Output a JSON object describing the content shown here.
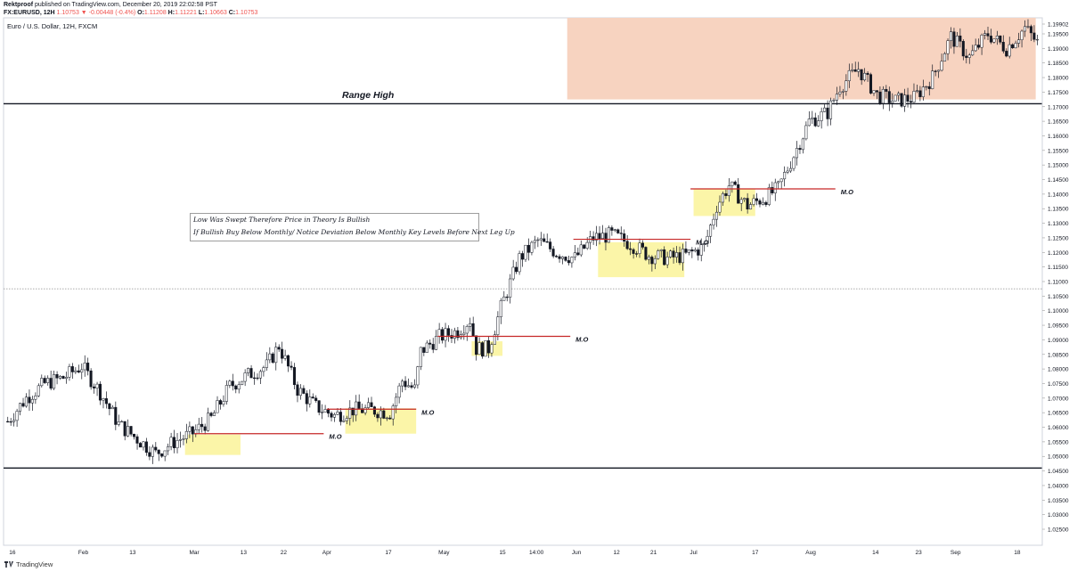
{
  "header": {
    "publisher": "Rektproof",
    "published_text": "published on TradingView.com, December 20, 2019 22:02:58 PST",
    "symbol": "FX:EURUSD, 12H",
    "change": "1.10753 ▼ -0.00448 (-0.4%)",
    "o_label": "O:",
    "o": "1.11208",
    "h_label": "H:",
    "h": "1.11221",
    "l_label": "L:",
    "l": "1.10663",
    "c_label": "C:",
    "c": "1.10753"
  },
  "chart_title": "Euro / U.S. Dollar, 12H, FXCM",
  "footer": {
    "brand": "TradingView"
  },
  "annotation": {
    "line1": "Low Was Swept Therefore Price in Theory Is Bullish",
    "line2": "If Bullish Buy Below Monthly/ Notice Deviation Below Monthly Key Levels Before Next Leg Up"
  },
  "colors": {
    "supply_zone": "#f7d3c0",
    "demand_zone": "#fbf5a8",
    "mo_line": "#c62828",
    "candle_body": "#ffffff",
    "candle_outline": "#131722"
  },
  "chart_data": {
    "type": "candlestick",
    "title": "Euro / U.S. Dollar, 12H, FXCM",
    "ylim": [
      1.0195,
      1.2005
    ],
    "y_ticks": [
      "1.19902",
      "1.19500",
      "1.19000",
      "1.18500",
      "1.18000",
      "1.17500",
      "1.17000",
      "1.16500",
      "1.16000",
      "1.15500",
      "1.15000",
      "1.14500",
      "1.14000",
      "1.13500",
      "1.13000",
      "1.12500",
      "1.12000",
      "1.11500",
      "1.11000",
      "1.10500",
      "1.10000",
      "1.09500",
      "1.09000",
      "1.08500",
      "1.08000",
      "1.07500",
      "1.07000",
      "1.06500",
      "1.06000",
      "1.05500",
      "1.05000",
      "1.04500",
      "1.04000",
      "1.03500",
      "1.03000",
      "1.02500"
    ],
    "x_ticks": [
      "16",
      "Feb",
      "13",
      "Mar",
      "13",
      "22",
      "Apr",
      "17",
      "May",
      "15",
      "14:00",
      "Jun",
      "12",
      "21",
      "Jul",
      "17",
      "Aug",
      "14",
      "23",
      "Sep",
      "18"
    ],
    "last_price": "1.19902",
    "price_path": [
      [
        0,
        1.062
      ],
      [
        6,
        1.07
      ],
      [
        12,
        1.075
      ],
      [
        18,
        1.077
      ],
      [
        24,
        1.081
      ],
      [
        30,
        1.072
      ],
      [
        36,
        1.061
      ],
      [
        42,
        1.056
      ],
      [
        48,
        1.051
      ],
      [
        54,
        1.055
      ],
      [
        60,
        1.058
      ],
      [
        66,
        1.063
      ],
      [
        72,
        1.074
      ],
      [
        78,
        1.078
      ],
      [
        84,
        1.081
      ],
      [
        88,
        1.088
      ],
      [
        94,
        1.073
      ],
      [
        100,
        1.067
      ],
      [
        106,
        1.064
      ],
      [
        112,
        1.066
      ],
      [
        118,
        1.066
      ],
      [
        124,
        1.065
      ],
      [
        128,
        1.076
      ],
      [
        132,
        1.073
      ],
      [
        134,
        1.086
      ],
      [
        140,
        1.091
      ],
      [
        146,
        1.093
      ],
      [
        150,
        1.097
      ],
      [
        152,
        1.087
      ],
      [
        156,
        1.087
      ],
      [
        160,
        1.101
      ],
      [
        166,
        1.118
      ],
      [
        172,
        1.124
      ],
      [
        178,
        1.12
      ],
      [
        184,
        1.118
      ],
      [
        190,
        1.125
      ],
      [
        196,
        1.126
      ],
      [
        202,
        1.123
      ],
      [
        208,
        1.119
      ],
      [
        214,
        1.118
      ],
      [
        220,
        1.119
      ],
      [
        226,
        1.122
      ],
      [
        230,
        1.136
      ],
      [
        234,
        1.143
      ],
      [
        240,
        1.136
      ],
      [
        246,
        1.139
      ],
      [
        250,
        1.142
      ],
      [
        254,
        1.151
      ],
      [
        260,
        1.165
      ],
      [
        266,
        1.168
      ],
      [
        270,
        1.177
      ],
      [
        276,
        1.183
      ],
      [
        282,
        1.174
      ],
      [
        288,
        1.172
      ],
      [
        294,
        1.173
      ],
      [
        300,
        1.18
      ],
      [
        306,
        1.194
      ],
      [
        312,
        1.187
      ],
      [
        318,
        1.195
      ],
      [
        324,
        1.19
      ],
      [
        330,
        1.197
      ],
      [
        334,
        1.192
      ]
    ],
    "levels": [
      {
        "price": 1.171,
        "label": "Range High"
      },
      {
        "price": 1.1075,
        "label": ""
      },
      {
        "price": 1.046,
        "label": ""
      }
    ],
    "supply_zone": {
      "from_bar": 182,
      "to_bar": 334,
      "top": 1.2005,
      "bottom": 1.1725
    },
    "demand_zones": [
      {
        "from_bar": 58,
        "to_bar": 76,
        "top": 1.0575,
        "bottom": 1.0505
      },
      {
        "from_bar": 110,
        "to_bar": 133,
        "top": 1.0665,
        "bottom": 1.0578
      },
      {
        "from_bar": 151,
        "to_bar": 161,
        "top": 1.0895,
        "bottom": 1.0845
      },
      {
        "from_bar": 192,
        "to_bar": 220,
        "top": 1.1235,
        "bottom": 1.1115
      },
      {
        "from_bar": 223,
        "to_bar": 243,
        "top": 1.1418,
        "bottom": 1.1325
      }
    ],
    "mo_lines": [
      {
        "from_bar": 61,
        "to_bar": 103,
        "price": 1.0578,
        "label": "M.O"
      },
      {
        "from_bar": 104,
        "to_bar": 133,
        "price": 1.0662,
        "label": "M.O"
      },
      {
        "from_bar": 140,
        "to_bar": 183,
        "price": 1.0912,
        "label": "M.O"
      },
      {
        "from_bar": 184,
        "to_bar": 222,
        "price": 1.1245,
        "label": "M.O"
      },
      {
        "from_bar": 222,
        "to_bar": 269,
        "price": 1.1418,
        "label": "M.O"
      }
    ]
  }
}
